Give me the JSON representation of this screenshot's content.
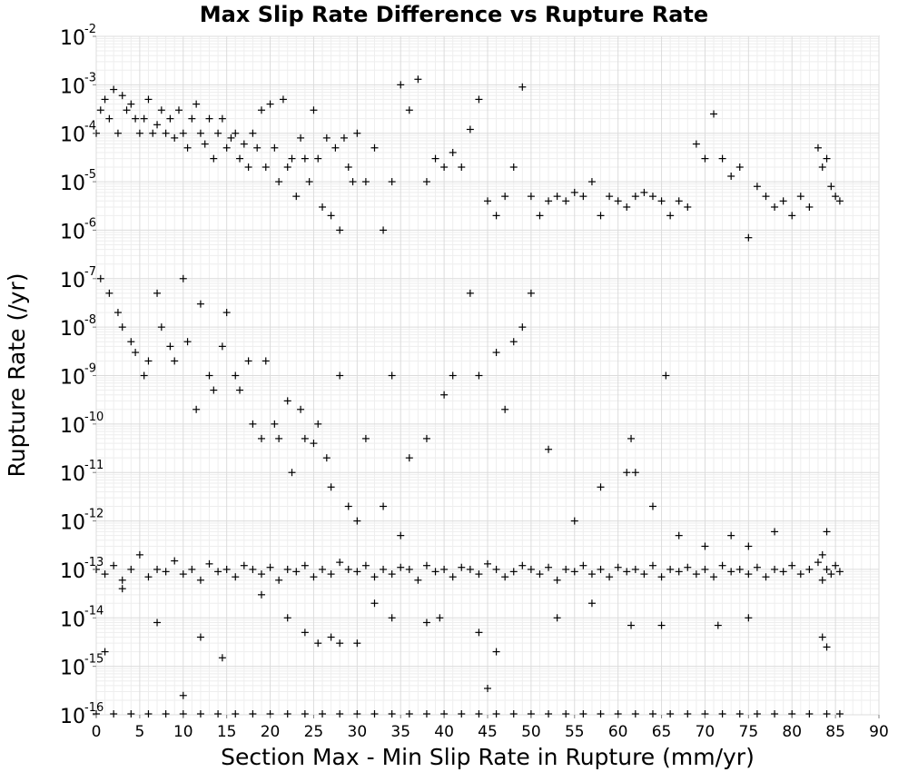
{
  "chart_data": {
    "type": "scatter",
    "title": "Max Slip Rate Difference vs Rupture Rate",
    "xlabel": "Section Max - Min Slip Rate in Rupture (mm/yr)",
    "ylabel": "Rupture Rate (/yr)",
    "xlim": [
      0,
      90
    ],
    "ylim": [
      1e-16,
      0.01
    ],
    "yscale": "log",
    "grid": true,
    "legend": "none",
    "marker": "plus",
    "marker_color": "#000000",
    "x_ticks": [
      "0",
      "5",
      "10",
      "15",
      "20",
      "25",
      "30",
      "35",
      "40",
      "45",
      "50",
      "55",
      "60",
      "65",
      "70",
      "75",
      "80",
      "85",
      "90"
    ],
    "y_ticks": [
      {
        "base": "10",
        "exp": "-16",
        "value": 1e-16
      },
      {
        "base": "10",
        "exp": "-15",
        "value": 1e-15
      },
      {
        "base": "10",
        "exp": "-14",
        "value": 1e-14
      },
      {
        "base": "10",
        "exp": "-13",
        "value": 1e-13
      },
      {
        "base": "10",
        "exp": "-12",
        "value": 1e-12
      },
      {
        "base": "10",
        "exp": "-11",
        "value": 1e-11
      },
      {
        "base": "10",
        "exp": "-10",
        "value": 1e-10
      },
      {
        "base": "10",
        "exp": "-9",
        "value": 1e-09
      },
      {
        "base": "10",
        "exp": "-8",
        "value": 1e-08
      },
      {
        "base": "10",
        "exp": "-7",
        "value": 1e-07
      },
      {
        "base": "10",
        "exp": "-6",
        "value": 1e-06
      },
      {
        "base": "10",
        "exp": "-5",
        "value": 1e-05
      },
      {
        "base": "10",
        "exp": "-4",
        "value": 0.0001
      },
      {
        "base": "10",
        "exp": "-3",
        "value": 0.001
      },
      {
        "base": "10",
        "exp": "-2",
        "value": 0.01
      }
    ],
    "series": [
      {
        "x": [
          0.0,
          0.5,
          1.0,
          1.5,
          2.0,
          2.5,
          3.0,
          3.5,
          4.0,
          4.5,
          5.0,
          5.5,
          6.0,
          6.5,
          7.0,
          7.5,
          8.0,
          8.5,
          9.0,
          9.5,
          10.0,
          10.5,
          11.0,
          11.5,
          12.0,
          12.5,
          13.0,
          13.5,
          14.0,
          14.5,
          15.0,
          15.5,
          16.0,
          16.5,
          17.0,
          17.5,
          18.0,
          18.5,
          19.0,
          19.5,
          20.0,
          20.5,
          21.0,
          21.5,
          22.0,
          22.5,
          23.0,
          23.5,
          24.0,
          24.5,
          25.0,
          25.5,
          26.0,
          26.5,
          27.0,
          27.5,
          28.0,
          28.5,
          29.0,
          29.5,
          30.0,
          31.0,
          32.0,
          33.0,
          34.0,
          35.0,
          36.0,
          37.0,
          38.0,
          39.0,
          40.0,
          41.0,
          42.0,
          43.0,
          44.0,
          45.0,
          46.0,
          47.0,
          48.0,
          49.0,
          50.0,
          51.0,
          52.0,
          53.0,
          54.0,
          55.0,
          56.0,
          57.0,
          58.0,
          59.0,
          60.0,
          61.0,
          62.0,
          63.0,
          64.0,
          65.0,
          66.0,
          67.0,
          68.0,
          69.0,
          70.0,
          71.0,
          72.0,
          73.0,
          74.0,
          75.0,
          76.0,
          77.0,
          78.0,
          79.0,
          80.0,
          81.0,
          82.0,
          83.0,
          83.5,
          84.0,
          84.5,
          85.0,
          85.5
        ],
        "y": [
          0.0001,
          0.0003,
          0.0005,
          0.0002,
          0.0008,
          0.0001,
          0.0006,
          0.0003,
          0.0004,
          0.0002,
          0.0001,
          0.0002,
          0.0005,
          0.0001,
          0.00015,
          0.0003,
          0.0001,
          0.0002,
          8e-05,
          0.0003,
          0.0001,
          5e-05,
          0.0002,
          0.0004,
          0.0001,
          6e-05,
          0.0002,
          3e-05,
          0.0001,
          0.0002,
          5e-05,
          8e-05,
          0.0001,
          3e-05,
          6e-05,
          2e-05,
          0.0001,
          5e-05,
          0.0003,
          2e-05,
          0.0004,
          5e-05,
          1e-05,
          0.0005,
          2e-05,
          3e-05,
          5e-06,
          8e-05,
          3e-05,
          1e-05,
          0.0003,
          3e-05,
          3e-06,
          8e-05,
          2e-06,
          5e-05,
          1e-06,
          8e-05,
          2e-05,
          1e-05,
          0.0001,
          1e-05,
          5e-05,
          1e-06,
          1e-05,
          0.001,
          0.0003,
          0.0013,
          1e-05,
          3e-05,
          2e-05,
          4e-05,
          2e-05,
          0.00012,
          0.0005,
          4e-06,
          2e-06,
          5e-06,
          2e-05,
          0.0009,
          5e-06,
          2e-06,
          4e-06,
          5e-06,
          4e-06,
          6e-06,
          5e-06,
          1e-05,
          2e-06,
          5e-06,
          4e-06,
          3e-06,
          5e-06,
          6e-06,
          5e-06,
          4e-06,
          2e-06,
          4e-06,
          3e-06,
          6e-05,
          3e-05,
          0.00025,
          3e-05,
          1.3e-05,
          2e-05,
          7e-07,
          8e-06,
          5e-06,
          3e-06,
          4e-06,
          2e-06,
          5e-06,
          3e-06,
          5e-05,
          2e-05,
          3e-05,
          8e-06,
          5e-06,
          4e-06
        ]
      },
      {
        "x": [
          0.5,
          1.5,
          2.5,
          3.0,
          4.0,
          4.5,
          5.5,
          6.0,
          7.0,
          7.5,
          8.5,
          9.0,
          10.0,
          10.5,
          11.5,
          12.0,
          13.0,
          13.5,
          14.5,
          15.0,
          16.0,
          16.5,
          17.5,
          18.0,
          19.0,
          19.5,
          20.5,
          21.0,
          22.0,
          22.5,
          23.5,
          24.0,
          25.0,
          25.5,
          26.5,
          27.0,
          28.0,
          29.0,
          30.0,
          31.0,
          33.0,
          34.0,
          35.0,
          36.0,
          38.0,
          40.0,
          41.0,
          43.0,
          44.0,
          46.0,
          47.0,
          48.0,
          49.0,
          50.0,
          52.0,
          55.0,
          58.0,
          61.0,
          61.5,
          62.0,
          64.0,
          65.5,
          67.0,
          70.0,
          73.0,
          75.0,
          78.0,
          83.5,
          84.0
        ],
        "y": [
          1e-07,
          5e-08,
          2e-08,
          1e-08,
          5e-09,
          3e-09,
          1e-09,
          2e-09,
          5e-08,
          1e-08,
          4e-09,
          2e-09,
          1e-07,
          5e-09,
          2e-10,
          3e-08,
          1e-09,
          5e-10,
          4e-09,
          2e-08,
          1e-09,
          5e-10,
          2e-09,
          1e-10,
          5e-11,
          2e-09,
          1e-10,
          5e-11,
          3e-10,
          1e-11,
          2e-10,
          5e-11,
          4e-11,
          1e-10,
          2e-11,
          5e-12,
          1e-09,
          2e-12,
          1e-12,
          5e-11,
          2e-12,
          1e-09,
          5e-13,
          2e-11,
          5e-11,
          4e-10,
          1e-09,
          5e-08,
          1e-09,
          3e-09,
          2e-10,
          5e-09,
          1e-08,
          5e-08,
          3e-11,
          1e-12,
          5e-12,
          1e-11,
          5e-11,
          1e-11,
          2e-12,
          1e-09,
          5e-13,
          3e-13,
          5e-13,
          3e-13,
          6e-13,
          2e-13,
          6e-13
        ]
      },
      {
        "x": [
          0.0,
          1.0,
          2.0,
          3.0,
          4.0,
          5.0,
          6.0,
          7.0,
          8.0,
          9.0,
          10.0,
          11.0,
          12.0,
          13.0,
          14.0,
          15.0,
          16.0,
          17.0,
          18.0,
          19.0,
          20.0,
          21.0,
          22.0,
          23.0,
          24.0,
          25.0,
          26.0,
          27.0,
          28.0,
          29.0,
          30.0,
          31.0,
          32.0,
          33.0,
          34.0,
          35.0,
          36.0,
          37.0,
          38.0,
          39.0,
          40.0,
          41.0,
          42.0,
          43.0,
          44.0,
          45.0,
          46.0,
          47.0,
          48.0,
          49.0,
          50.0,
          51.0,
          52.0,
          53.0,
          54.0,
          55.0,
          56.0,
          57.0,
          58.0,
          59.0,
          60.0,
          61.0,
          62.0,
          63.0,
          64.0,
          65.0,
          66.0,
          67.0,
          68.0,
          69.0,
          70.0,
          71.0,
          72.0,
          73.0,
          74.0,
          75.0,
          76.0,
          77.0,
          78.0,
          79.0,
          80.0,
          81.0,
          82.0,
          83.0,
          83.5,
          84.0,
          84.5,
          85.0,
          85.5
        ],
        "y": [
          1e-13,
          8e-14,
          1.2e-13,
          6e-14,
          1e-13,
          2e-13,
          7e-14,
          1e-13,
          9e-14,
          1.5e-13,
          8e-14,
          1e-13,
          6e-14,
          1.3e-13,
          9e-14,
          1e-13,
          7e-14,
          1.2e-13,
          1e-13,
          8e-14,
          1.1e-13,
          6e-14,
          1e-13,
          9e-14,
          1.2e-13,
          7e-14,
          1e-13,
          8e-14,
          1.4e-13,
          1e-13,
          9e-14,
          1.2e-13,
          7e-14,
          1e-13,
          8e-14,
          1.1e-13,
          1e-13,
          6e-14,
          1.2e-13,
          9e-14,
          1e-13,
          7e-14,
          1.1e-13,
          1e-13,
          8e-14,
          1.3e-13,
          1e-13,
          7e-14,
          9e-14,
          1.2e-13,
          1e-13,
          8e-14,
          1.1e-13,
          6e-14,
          1e-13,
          9e-14,
          1.2e-13,
          8e-14,
          1e-13,
          7e-14,
          1.1e-13,
          9e-14,
          1e-13,
          8e-14,
          1.2e-13,
          7e-14,
          1e-13,
          9e-14,
          1.1e-13,
          8e-14,
          1e-13,
          7e-14,
          1.2e-13,
          9e-14,
          1e-13,
          8e-14,
          1.1e-13,
          7e-14,
          1e-13,
          9e-14,
          1.2e-13,
          8e-14,
          1e-13,
          1.4e-13,
          6e-14,
          1e-13,
          8e-14,
          1.2e-13,
          9e-14
        ]
      },
      {
        "x": [
          1.0,
          3.0,
          7.0,
          10.0,
          12.0,
          14.5,
          19.0,
          22.0,
          24.0,
          25.5,
          27.0,
          28.0,
          30.0,
          32.0,
          34.0,
          38.0,
          39.5,
          44.0,
          45.0,
          46.0,
          53.0,
          57.0,
          61.5,
          65.0,
          71.5,
          75.0,
          83.5,
          84.0
        ],
        "y": [
          2e-15,
          4e-14,
          8e-15,
          2.5e-16,
          4e-15,
          1.5e-15,
          3e-14,
          1e-14,
          5e-15,
          3e-15,
          4e-15,
          3e-15,
          3e-15,
          2e-14,
          1e-14,
          8e-15,
          1e-14,
          5e-15,
          3.5e-16,
          2e-15,
          1e-14,
          2e-14,
          7e-15,
          7e-15,
          7e-15,
          1e-14,
          4e-15,
          2.5e-15
        ]
      },
      {
        "x": [
          0.0,
          2.0,
          4.0,
          6.0,
          8.0,
          10.0,
          12.0,
          14.0,
          16.0,
          18.0,
          20.0,
          22.0,
          24.0,
          26.0,
          28.0,
          30.0,
          32.0,
          34.0,
          36.0,
          38.0,
          40.0,
          42.0,
          44.0,
          46.0,
          48.0,
          50.0,
          52.0,
          54.0,
          56.0,
          58.0,
          60.0,
          62.0,
          64.0,
          66.0,
          68.0,
          70.0,
          72.0,
          74.0,
          76.0,
          78.0,
          80.0,
          82.0,
          84.0,
          85.5
        ],
        "y": [
          1e-16,
          1e-16,
          1e-16,
          1e-16,
          1e-16,
          1e-16,
          1e-16,
          1e-16,
          1e-16,
          1e-16,
          1e-16,
          1e-16,
          1e-16,
          1e-16,
          1e-16,
          1e-16,
          1e-16,
          1e-16,
          1e-16,
          1e-16,
          1e-16,
          1e-16,
          1e-16,
          1e-16,
          1e-16,
          1e-16,
          1e-16,
          1e-16,
          1e-16,
          1e-16,
          1e-16,
          1e-16,
          1e-16,
          1e-16,
          1e-16,
          1e-16,
          1e-16,
          1e-16,
          1e-16,
          1e-16,
          1e-16,
          1e-16,
          1e-16,
          1e-16
        ]
      }
    ]
  }
}
